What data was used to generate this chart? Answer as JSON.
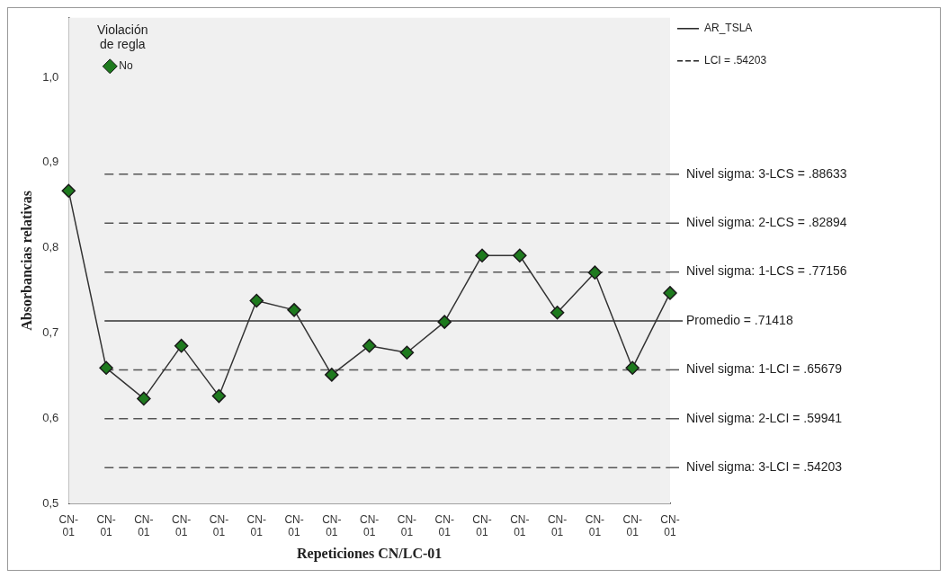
{
  "chart_data": {
    "type": "line",
    "xlabel": "Repeticiones CN/LC-01",
    "ylabel": "Absorbancias relativas",
    "legend_title": "Violación de regla",
    "legend": "top left",
    "marker": "diamond",
    "grid": false,
    "categories": [
      "CN-01",
      "CN-01",
      "CN-01",
      "CN-01",
      "CN-01",
      "CN-01",
      "CN-01",
      "CN-01",
      "CN-01",
      "CN-01",
      "CN-01",
      "CN-01",
      "CN-01",
      "CN-01",
      "CN-01",
      "CN-01",
      "CN-01"
    ],
    "series": [
      {
        "name": "No",
        "color": "#1e7a1e",
        "values": [
          0.867,
          0.659,
          0.623,
          0.685,
          0.626,
          0.738,
          0.727,
          0.651,
          0.685,
          0.677,
          0.713,
          0.791,
          0.791,
          0.724,
          0.771,
          0.659,
          0.747
        ]
      }
    ],
    "ylim": [
      0.5,
      1.07
    ],
    "yticks": [
      {
        "value": 0.5,
        "label": "0,5"
      },
      {
        "value": 0.6,
        "label": "0,6"
      },
      {
        "value": 0.7,
        "label": "0,7"
      },
      {
        "value": 0.8,
        "label": "0,8"
      },
      {
        "value": 0.9,
        "label": "0,9"
      },
      {
        "value": 1.0,
        "label": "1,0"
      }
    ],
    "ref_lines": [
      {
        "axis": "y",
        "value": 0.88633,
        "label": "Nivel sigma: 3-LCS = .88633",
        "line_style": "dashed",
        "color": "#555555"
      },
      {
        "axis": "y",
        "value": 0.82894,
        "label": "Nivel sigma: 2-LCS = .82894",
        "line_style": "dashed",
        "color": "#555555"
      },
      {
        "axis": "y",
        "value": 0.77156,
        "label": "Nivel sigma: 1-LCS = .77156",
        "line_style": "dashed",
        "color": "#555555"
      },
      {
        "axis": "y",
        "value": 0.71418,
        "label": "Promedio = .71418",
        "line_style": "solid",
        "color": "#333333"
      },
      {
        "axis": "y",
        "value": 0.65679,
        "label": "Nivel sigma: 1-LCI = .65679",
        "line_style": "dashed",
        "color": "#555555"
      },
      {
        "axis": "y",
        "value": 0.59941,
        "label": "Nivel sigma: 2-LCI = .59941",
        "line_style": "dashed",
        "color": "#555555"
      },
      {
        "axis": "y",
        "value": 0.54203,
        "label": "Nivel sigma: 3-LCI = .54203",
        "line_style": "dashed",
        "color": "#555555"
      }
    ],
    "annotations": [
      "AR_TSLA",
      "LCI = .54203"
    ]
  }
}
